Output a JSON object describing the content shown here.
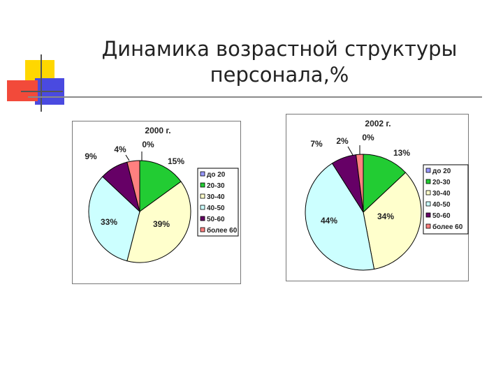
{
  "slide": {
    "title_line1": "Динамика возрастной структуры",
    "title_line2": "персонала,%"
  },
  "chart_data": [
    {
      "type": "pie",
      "title": "2000 г.",
      "categories": [
        "до 20",
        "20-30",
        "30-40",
        "40-50",
        "50-60",
        "более 60"
      ],
      "values": [
        0,
        15,
        39,
        33,
        9,
        4
      ],
      "labels": [
        "0%",
        "15%",
        "39%",
        "33%",
        "9%",
        "4%"
      ],
      "legend": [
        "до 20",
        "20-30",
        "30-40",
        "40-50",
        "50-60",
        "более 60"
      ],
      "colors": [
        "#9999ff",
        "#22cc33",
        "#ffffcc",
        "#ccffff",
        "#660066",
        "#ff8080"
      ],
      "legend_position": "right"
    },
    {
      "type": "pie",
      "title": "2002 г.",
      "categories": [
        "до 20",
        "20-30",
        "30-40",
        "40-50",
        "50-60",
        "более 60"
      ],
      "values": [
        0,
        13,
        34,
        44,
        7,
        2
      ],
      "labels": [
        "0%",
        "13%",
        "34%",
        "44%",
        "7%",
        "2%"
      ],
      "legend": [
        "до 20",
        "20-30",
        "30-40",
        "40-50",
        "50-60",
        "более 60"
      ],
      "colors": [
        "#9999ff",
        "#22cc33",
        "#ffffcc",
        "#ccffff",
        "#660066",
        "#ff8080"
      ],
      "legend_position": "right"
    }
  ]
}
